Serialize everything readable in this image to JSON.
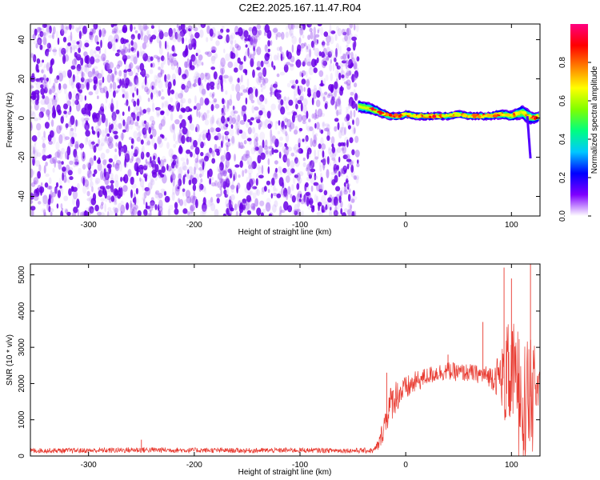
{
  "title": "C2E2.2025.167.11.47.R04",
  "chart_data": [
    {
      "id": "spectrogram",
      "type": "heatmap",
      "xlabel": "Height of straight line (km)",
      "ylabel": "Frequency (Hz)",
      "xlim": [
        -355,
        127
      ],
      "ylim": [
        -50,
        48
      ],
      "xticks": [
        -300,
        -200,
        -100,
        0,
        100
      ],
      "xtick_labels": [
        "-300",
        "-200",
        "-100",
        "0",
        "100"
      ],
      "yticks": [
        -40,
        -20,
        0,
        20,
        40
      ],
      "ytick_labels": [
        "-40",
        "-20",
        "0",
        "20",
        "40"
      ],
      "grid": false,
      "colorbar": {
        "label": "Normalized spectral amplitude",
        "range": [
          0,
          1
        ],
        "ticks": [
          0.0,
          0.2,
          0.4,
          0.6,
          0.8
        ],
        "tick_labels": [
          "0.0",
          "0.2",
          "0.4",
          "0.6",
          "0.8"
        ],
        "colormap": "rainbow",
        "colors": [
          "#ffffff",
          "#7f00ff",
          "#0000ff",
          "#00c8ff",
          "#00ff80",
          "#80ff00",
          "#ffff00",
          "#ff8000",
          "#ff0000",
          "#ff0080"
        ]
      },
      "regions": [
        {
          "description_x_range": [
            -355,
            -45
          ],
          "pattern": "broadband noise",
          "amplitude_range": [
            0.0,
            0.2
          ],
          "color": "#7f00ff"
        },
        {
          "description_x_range": [
            -45,
            127
          ],
          "pattern": "narrow signal band",
          "amplitude_range": [
            0.2,
            0.95
          ]
        }
      ],
      "signal_track": {
        "x": [
          -45,
          -35,
          -25,
          -15,
          -5,
          0,
          10,
          20,
          30,
          40,
          50,
          60,
          70,
          80,
          90,
          100,
          105,
          110,
          115,
          120,
          127
        ],
        "frequency": [
          6,
          5,
          3,
          1,
          1,
          2,
          1,
          1,
          1,
          1,
          2,
          1,
          1,
          1,
          2,
          1,
          2,
          3,
          1,
          0,
          1
        ],
        "width_hz": [
          6,
          6,
          5,
          4,
          4,
          4,
          4,
          4,
          4,
          4,
          4,
          4,
          4,
          4,
          5,
          5,
          6,
          7,
          8,
          6,
          5
        ]
      }
    },
    {
      "id": "snr",
      "type": "line",
      "xlabel": "Height of straight line (km)",
      "ylabel": "SNR (10 * v/v)",
      "xlim": [
        -355,
        127
      ],
      "ylim": [
        0,
        5300
      ],
      "xticks": [
        -300,
        -200,
        -100,
        0,
        100
      ],
      "xtick_labels": [
        "-300",
        "-200",
        "-100",
        "0",
        "100"
      ],
      "yticks": [
        0,
        1000,
        2000,
        3000,
        4000,
        5000
      ],
      "ytick_labels": [
        "0",
        "1000",
        "2000",
        "3000",
        "4000",
        "5000"
      ],
      "grid": false,
      "series": [
        {
          "color": "#e8382e",
          "x": [
            -355,
            -300,
            -250,
            -200,
            -150,
            -100,
            -50,
            -30,
            -25,
            -20,
            -15,
            -10,
            -5,
            0,
            10,
            20,
            30,
            40,
            50,
            60,
            70,
            80,
            90,
            95,
            100,
            105,
            110,
            115,
            120,
            127
          ],
          "y": [
            150,
            150,
            170,
            160,
            150,
            160,
            150,
            150,
            350,
            900,
            1400,
            1650,
            1750,
            1850,
            2050,
            2200,
            2300,
            2350,
            2300,
            2300,
            2250,
            2200,
            2200,
            2100,
            2200,
            2300,
            2000,
            1400,
            1800,
            2000
          ],
          "noise_amplitude": [
            70,
            70,
            80,
            70,
            70,
            70,
            70,
            80,
            200,
            400,
            500,
            500,
            400,
            350,
            300,
            250,
            250,
            250,
            250,
            250,
            250,
            300,
            700,
            1500,
            1500,
            1400,
            1500,
            1800,
            1500,
            300
          ],
          "peaks": [
            {
              "x": -250,
              "y": 450
            },
            {
              "x": -18,
              "y": 2300
            },
            {
              "x": 40,
              "y": 2800
            },
            {
              "x": 73,
              "y": 3700
            },
            {
              "x": 93,
              "y": 5200
            },
            {
              "x": 100,
              "y": 4900
            },
            {
              "x": 118,
              "y": 5300
            }
          ]
        }
      ]
    }
  ]
}
